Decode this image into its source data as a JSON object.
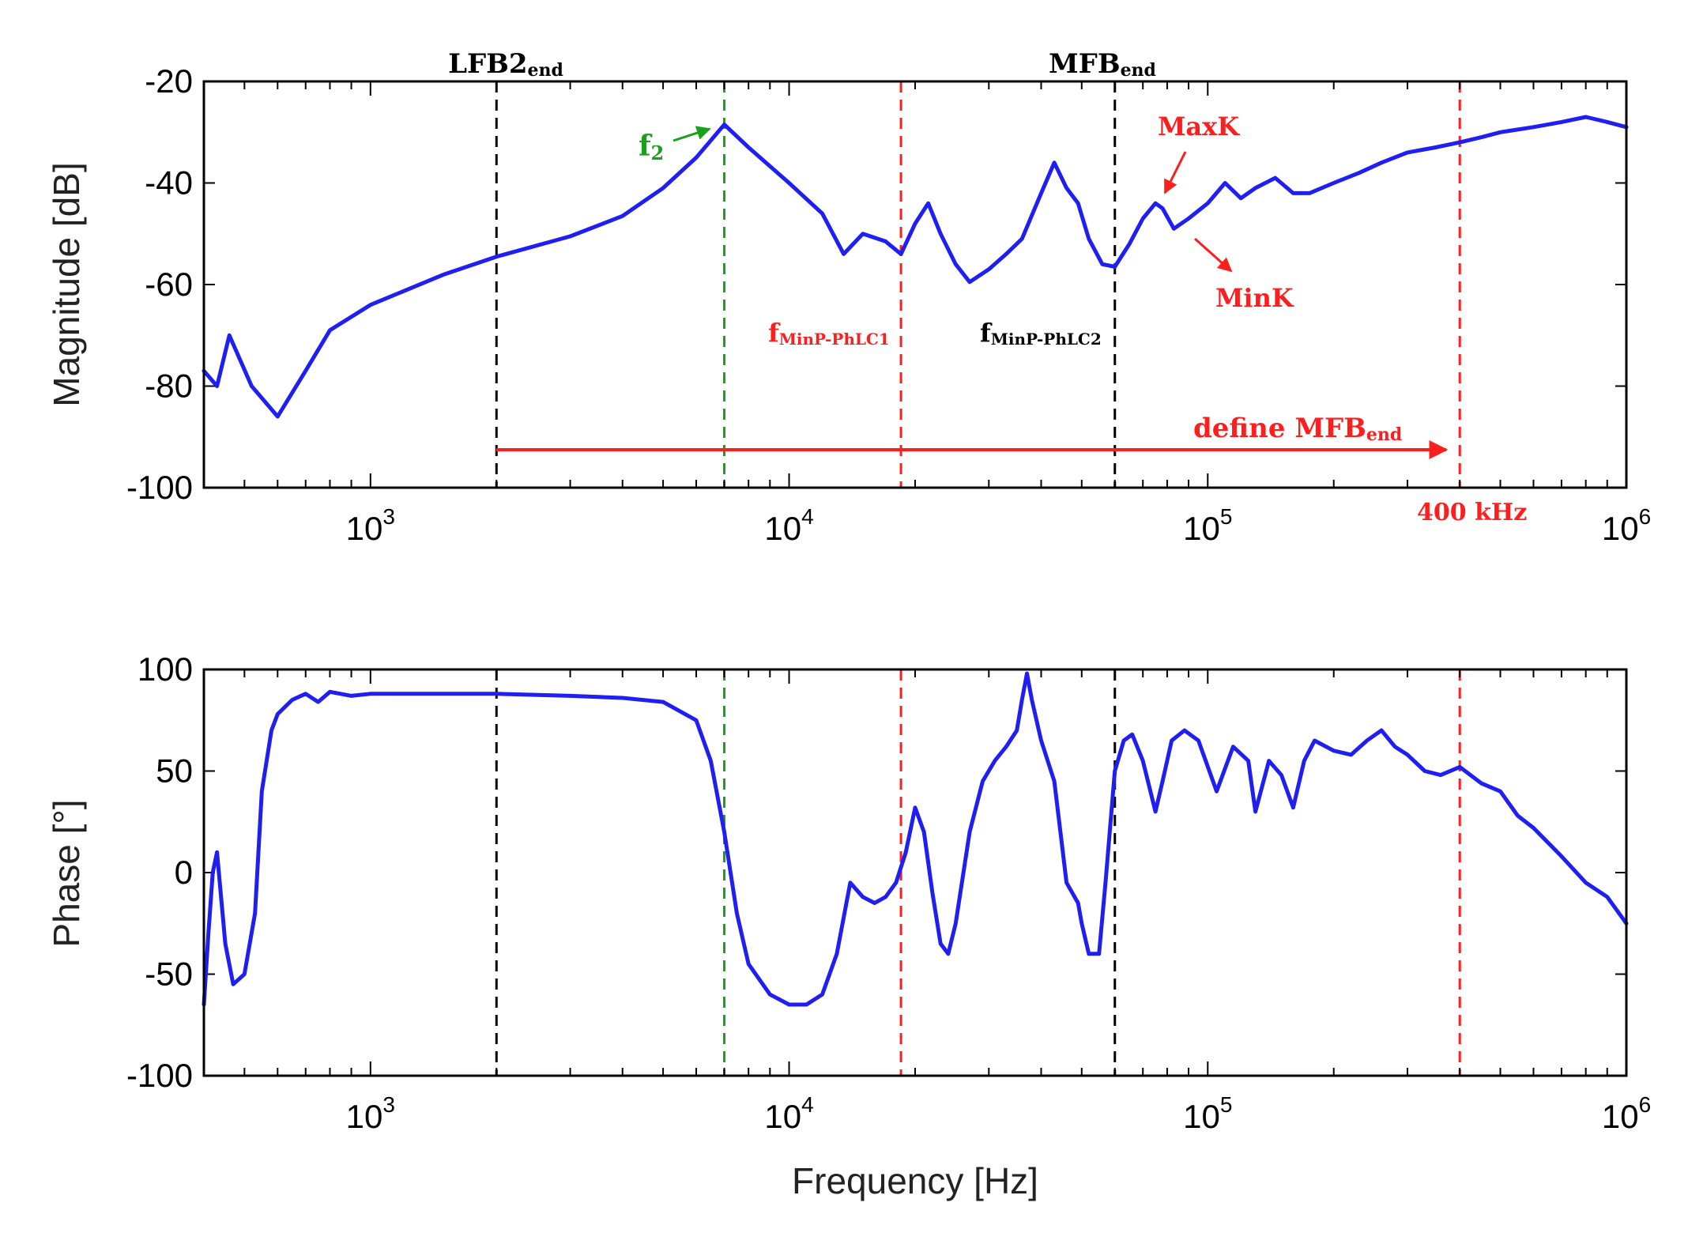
{
  "chart_data": [
    {
      "type": "line",
      "name": "magnitude",
      "ylabel": "Magnitude [dB]",
      "xlabel": "",
      "xscale": "log",
      "xlim": [
        400,
        1000000
      ],
      "ylim": [
        -100,
        -20
      ],
      "yticks": [
        "-20",
        "-40",
        "-60",
        "-80",
        "-100"
      ],
      "ytick_values": [
        -20,
        -40,
        -60,
        -80,
        -100
      ],
      "xticks": [
        {
          "value": 1000,
          "base": "10",
          "exp": "3"
        },
        {
          "value": 10000,
          "base": "10",
          "exp": "4"
        },
        {
          "value": 100000,
          "base": "10",
          "exp": "5"
        },
        {
          "value": 1000000,
          "base": "10",
          "exp": "6"
        }
      ],
      "series_color": "#1f1ff2",
      "series": [
        {
          "name": "magnitude",
          "x": [
            400,
            430,
            460,
            520,
            600,
            700,
            800,
            1000,
            1500,
            2000,
            3000,
            4000,
            5000,
            6000,
            7000,
            8000,
            10000,
            12000,
            13500,
            15000,
            17000,
            18500,
            20000,
            21500,
            23000,
            25000,
            27000,
            30000,
            33000,
            36000,
            40000,
            43000,
            46000,
            49000,
            52000,
            56000,
            60000,
            65000,
            70000,
            75000,
            78000,
            83000,
            90000,
            100000,
            110000,
            120000,
            130000,
            145000,
            160000,
            175000,
            200000,
            230000,
            260000,
            300000,
            350000,
            400000,
            450000,
            500000,
            600000,
            700000,
            800000,
            900000,
            1000000
          ],
          "y": [
            -77,
            -80,
            -70,
            -80,
            -86,
            -77,
            -69,
            -64,
            -58,
            -54.5,
            -50.5,
            -46.5,
            -41,
            -35,
            -28.5,
            -33,
            -40,
            -46,
            -54,
            -50,
            -51.5,
            -54,
            -48,
            -44,
            -50,
            -56,
            -59.5,
            -57,
            -54,
            -51,
            -42,
            -36,
            -41,
            -44,
            -51,
            -56,
            -56.5,
            -52,
            -47,
            -44,
            -45,
            -49,
            -47,
            -44,
            -40,
            -43,
            -41,
            -39,
            -42,
            -42,
            -40,
            -38,
            -36,
            -34,
            -33,
            -32,
            -31,
            -30,
            -29,
            -28,
            -27,
            -28,
            -29
          ]
        }
      ]
    },
    {
      "type": "line",
      "name": "phase",
      "ylabel": "Phase [°]",
      "xlabel": "Frequency [Hz]",
      "xscale": "log",
      "xlim": [
        400,
        1000000
      ],
      "ylim": [
        -100,
        100
      ],
      "yticks": [
        "100",
        "50",
        "0",
        "-50",
        "-100"
      ],
      "ytick_values": [
        100,
        50,
        0,
        -50,
        -100
      ],
      "xticks": [
        {
          "value": 1000,
          "base": "10",
          "exp": "3"
        },
        {
          "value": 10000,
          "base": "10",
          "exp": "4"
        },
        {
          "value": 100000,
          "base": "10",
          "exp": "5"
        },
        {
          "value": 1000000,
          "base": "10",
          "exp": "6"
        }
      ],
      "series_color": "#1f1ff2",
      "series": [
        {
          "name": "phase",
          "x": [
            400,
            410,
            420,
            430,
            450,
            470,
            500,
            530,
            550,
            580,
            600,
            650,
            700,
            750,
            800,
            900,
            1000,
            2000,
            3000,
            4000,
            5000,
            6000,
            6500,
            7000,
            7500,
            8000,
            9000,
            10000,
            11000,
            12000,
            13000,
            14000,
            15000,
            16000,
            17000,
            18000,
            19000,
            20000,
            21000,
            22000,
            23000,
            24000,
            25000,
            27000,
            29000,
            31000,
            33000,
            35000,
            36000,
            37000,
            38000,
            40000,
            43000,
            46000,
            49000,
            50000,
            52000,
            55000,
            57000,
            60000,
            63000,
            66000,
            70000,
            75000,
            78000,
            82000,
            88000,
            95000,
            105000,
            115000,
            125000,
            130000,
            140000,
            150000,
            160000,
            170000,
            180000,
            200000,
            220000,
            240000,
            260000,
            280000,
            300000,
            330000,
            360000,
            400000,
            450000,
            500000,
            550000,
            600000,
            700000,
            800000,
            900000,
            1000000
          ],
          "y": [
            -65,
            -30,
            0,
            10,
            -35,
            -55,
            -50,
            -20,
            40,
            70,
            78,
            85,
            88,
            84,
            89,
            87,
            88,
            88,
            87,
            86,
            84,
            75,
            55,
            20,
            -20,
            -45,
            -60,
            -65,
            -65,
            -60,
            -40,
            -5,
            -12,
            -15,
            -12,
            -5,
            10,
            32,
            20,
            -10,
            -35,
            -40,
            -25,
            20,
            45,
            55,
            62,
            70,
            85,
            98,
            85,
            65,
            45,
            -5,
            -15,
            -25,
            -40,
            -40,
            -5,
            50,
            65,
            68,
            55,
            30,
            45,
            65,
            70,
            65,
            40,
            62,
            55,
            30,
            55,
            48,
            32,
            55,
            65,
            60,
            58,
            65,
            70,
            62,
            58,
            50,
            48,
            52,
            44,
            40,
            28,
            22,
            8,
            -5,
            -12,
            -25
          ]
        }
      ]
    }
  ],
  "colors": {
    "series": "#1f1ff2",
    "black_marker": "#000000",
    "red_marker": "#ff1e1e",
    "green_marker": "#1aa01a",
    "annotation_red": "#ff1e1e",
    "annotation_green": "#1aa01a"
  },
  "markers": [
    {
      "id": "lfb2-end",
      "x": 2000,
      "color": "#000000"
    },
    {
      "id": "f2",
      "x": 7000,
      "color": "#1aa01a"
    },
    {
      "id": "fminp-phlc1",
      "x": 18500,
      "color": "#ff1e1e"
    },
    {
      "id": "mfb-end",
      "x": 60000,
      "color": "#000000"
    },
    {
      "id": "f-400khz",
      "x": 400000,
      "color": "#ff1e1e"
    }
  ],
  "annotations": {
    "lfb2_main": "LFB2",
    "lfb2_sub": "end",
    "mfb_main": "MFB",
    "mfb_sub": "end",
    "f2_main": "f",
    "f2_sub": "2",
    "maxk": "MaxK",
    "mink": "MinK",
    "fminp1_main": "f",
    "fminp1_sub": "MinP-PhLC1",
    "fminp2_main": "f",
    "fminp2_sub": "MinP-PhLC2",
    "define_main": "define MFB",
    "define_sub": "end",
    "khz400": "400 kHz"
  }
}
